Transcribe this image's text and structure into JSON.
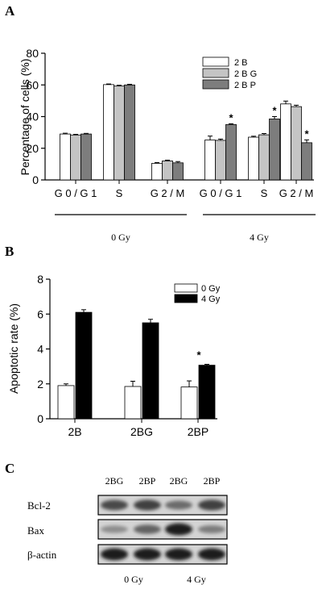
{
  "panels": {
    "a": {
      "label": "A"
    },
    "b": {
      "label": "B"
    },
    "c": {
      "label": "C"
    }
  },
  "chart_data": [
    {
      "type": "bar",
      "ylabel": "Percentage of cells (%)",
      "ylim": [
        0,
        80
      ],
      "yticks": [
        0,
        20,
        40,
        60,
        80
      ],
      "categories": [
        "G 0 / G 1",
        "S",
        "G 2 / M",
        "G 0 / G 1",
        "S",
        "G 2 / M"
      ],
      "groups": [
        {
          "label": "0 Gy",
          "categories": [
            0,
            1,
            2
          ]
        },
        {
          "label": "4 Gy",
          "categories": [
            3,
            4,
            5
          ]
        }
      ],
      "series": [
        {
          "name": "2 B",
          "color": "#ffffff",
          "values": [
            29,
            60.2,
            10.5,
            25.2,
            27,
            48
          ],
          "errors": [
            0.5,
            0.4,
            0.5,
            2.5,
            0.6,
            1.8
          ]
        },
        {
          "name": "2 B G",
          "color": "#c4c4c4",
          "values": [
            28.4,
            59.3,
            12,
            25,
            28.5,
            46.3
          ],
          "errors": [
            0.4,
            0.5,
            0.5,
            0.8,
            0.8,
            0.9
          ]
        },
        {
          "name": "2 B P",
          "color": "#7d7d7d",
          "values": [
            29,
            60,
            10.8,
            35,
            38.5,
            23.5
          ],
          "errors": [
            0.4,
            0.4,
            0.8,
            0.5,
            1.5,
            1.8
          ]
        }
      ],
      "significant": [
        {
          "series": 2,
          "category": 3,
          "mark": "*"
        },
        {
          "series": 2,
          "category": 4,
          "mark": "*"
        },
        {
          "series": 2,
          "category": 5,
          "mark": "*"
        }
      ],
      "legend_position": "top-right"
    },
    {
      "type": "bar",
      "ylabel": "Apoptotic rate (%)",
      "ylim": [
        0,
        8
      ],
      "yticks": [
        0,
        2,
        4,
        6,
        8
      ],
      "categories": [
        "2B",
        "2BG",
        "2BP"
      ],
      "series": [
        {
          "name": "0 Gy",
          "color": "#ffffff",
          "values": [
            1.9,
            1.85,
            1.82
          ],
          "errors": [
            0.1,
            0.3,
            0.35
          ]
        },
        {
          "name": "4 Gy",
          "color": "#000000",
          "values": [
            6.1,
            5.5,
            3.07
          ],
          "errors": [
            0.15,
            0.2,
            0.05
          ]
        }
      ],
      "significant": [
        {
          "series": 1,
          "category": 2,
          "mark": "*"
        }
      ],
      "legend_position": "top-right"
    }
  ],
  "western_blot": {
    "lanes": [
      "2BG",
      "2BP",
      "2BG",
      "2BP"
    ],
    "rows": [
      "Bcl-2",
      "Bax",
      "β-actin"
    ],
    "groups": [
      "0 Gy",
      "4 Gy"
    ],
    "band_intensity": {
      "Bcl-2": [
        0.75,
        0.8,
        0.55,
        0.8
      ],
      "Bax": [
        0.35,
        0.6,
        1.0,
        0.45
      ],
      "β-actin": [
        1.0,
        1.0,
        1.0,
        1.0
      ]
    }
  }
}
